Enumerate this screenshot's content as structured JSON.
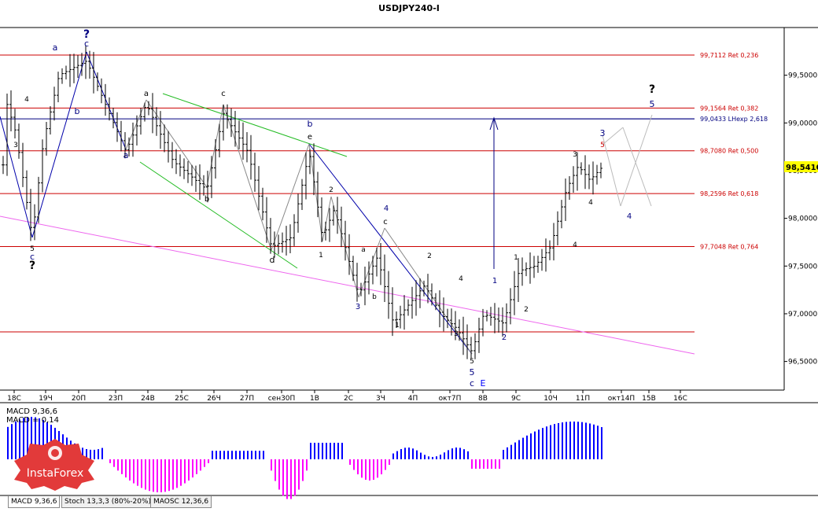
{
  "colors": {
    "up_bar": "#0000ff",
    "down_bar": "#ff00ff",
    "price_line": "#cc0000",
    "grid": "#aaaaaa",
    "accent_blue": "#000080"
  },
  "tabs": [
    {
      "label": "MACD 9,36,6"
    },
    {
      "label": "Stoch 13,3,3 (80%-20%)"
    },
    {
      "label": "MAOSC 12,36,6"
    }
  ],
  "logo_text": "InstaForex",
  "chart_data": {
    "type": "candlestick",
    "title": "USDJPY240-I",
    "ylim": [
      96.2,
      100.0
    ],
    "y_ticks": [
      {
        "value": 99.5,
        "label": "99,5000"
      },
      {
        "value": 99.0,
        "label": "99,0000"
      },
      {
        "value": 98.5,
        "label": "98,5000"
      },
      {
        "value": 98.0,
        "label": "98,0000"
      },
      {
        "value": 97.5,
        "label": "97,5000"
      },
      {
        "value": 97.0,
        "label": "97,0000"
      },
      {
        "value": 96.5,
        "label": "96,5000"
      }
    ],
    "last_price": {
      "value": 98.541,
      "label": "98,5410"
    },
    "x_ticks": [
      "18С",
      "19Ч",
      "20П",
      "23П",
      "24В",
      "25С",
      "26Ч",
      "27П",
      "сен30П",
      "1В",
      "2С",
      "3Ч",
      "4П",
      "окт7П",
      "8В",
      "9С",
      "10Ч",
      "11П",
      "окт14П",
      "15В",
      "16С"
    ],
    "levels": [
      {
        "value": 99.7112,
        "label": "99,7112 Ret 0,236",
        "color": "#cc0000"
      },
      {
        "value": 99.1564,
        "label": "99,1564 Ret 0,382",
        "color": "#cc0000"
      },
      {
        "value": 99.0433,
        "label": "99,0433 LHexp 2,618",
        "color": "#000080"
      },
      {
        "value": 98.708,
        "label": "98,7080 Ret 0,500",
        "color": "#cc0000"
      },
      {
        "value": 98.2596,
        "label": "98,2596 Ret 0,618",
        "color": "#cc0000"
      },
      {
        "value": 97.7048,
        "label": "97,7048 Ret 0,764",
        "color": "#cc0000"
      },
      {
        "value": 96.81,
        "label": "",
        "color": "#cc0000"
      }
    ],
    "wave_labels": [
      {
        "text": "?",
        "color": "#000080"
      },
      {
        "text": "c",
        "color": "#000080"
      },
      {
        "text": "a",
        "color": "#000080"
      },
      {
        "text": "b",
        "color": "#000080"
      },
      {
        "text": "a",
        "color": "#000080"
      },
      {
        "text": "b",
        "color": "#000000"
      },
      {
        "text": "c",
        "color": "#000000"
      },
      {
        "text": "a",
        "color": "#000000"
      },
      {
        "text": "d",
        "color": "#000000"
      },
      {
        "text": "b",
        "color": "#000080"
      },
      {
        "text": "e",
        "color": "#000000"
      },
      {
        "text": "2",
        "color": "#000000"
      },
      {
        "text": "4",
        "color": "#000000"
      },
      {
        "text": "3",
        "color": "#000000"
      },
      {
        "text": "5",
        "color": "#000000"
      },
      {
        "text": "c",
        "color": "#000080"
      },
      {
        "text": "?",
        "color": "#000000"
      },
      {
        "text": "1",
        "color": "#000000"
      },
      {
        "text": "a",
        "color": "#000000"
      },
      {
        "text": "b",
        "color": "#000000"
      },
      {
        "text": "3",
        "color": "#000080"
      },
      {
        "text": "4",
        "color": "#000080"
      },
      {
        "text": "c",
        "color": "#000000"
      },
      {
        "text": "1",
        "color": "#000000"
      },
      {
        "text": "2",
        "color": "#000000"
      },
      {
        "text": "4",
        "color": "#000000"
      },
      {
        "text": "3",
        "color": "#000000"
      },
      {
        "text": "5",
        "color": "#000000"
      },
      {
        "text": "5",
        "color": "#000080"
      },
      {
        "text": "c",
        "color": "#000080"
      },
      {
        "text": "E",
        "color": "#0000ff"
      },
      {
        "text": "1",
        "color": "#000080"
      },
      {
        "text": "2",
        "color": "#000080"
      },
      {
        "text": "1",
        "color": "#000000"
      },
      {
        "text": "2",
        "color": "#000000"
      },
      {
        "text": "4",
        "color": "#000000"
      },
      {
        "text": "3",
        "color": "#000000"
      },
      {
        "text": "4",
        "color": "#000000"
      },
      {
        "text": "5",
        "color": "#cc0000"
      },
      {
        "text": "3",
        "color": "#000080"
      },
      {
        "text": "4",
        "color": "#000080"
      },
      {
        "text": "?",
        "color": "#000000"
      },
      {
        "text": "5",
        "color": "#000080"
      }
    ],
    "macd_labels": [
      "MACD 9,36,6",
      "MACD = 0,14"
    ]
  }
}
